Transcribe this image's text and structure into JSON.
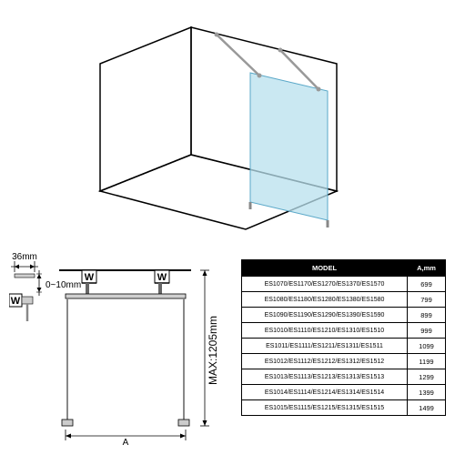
{
  "top3d": {
    "glass_fill": "#b8e0ee",
    "wall_stroke": "#000000",
    "wall_stroke_width": 1.5,
    "bar_stroke": "#888888"
  },
  "schematic": {
    "dim_36": "36mm",
    "dim_010": "0~10mm",
    "dim_max": "MAX:1205mm",
    "dim_A": "A",
    "w_label": "W",
    "stroke": "#000000"
  },
  "table": {
    "headers": [
      "MODEL",
      "A,mm"
    ],
    "rows": [
      [
        "ES1070/ES1170/ES1270/ES1370/ES1570",
        "699"
      ],
      [
        "ES1080/ES1180/ES1280/ES1380/ES1580",
        "799"
      ],
      [
        "ES1090/ES1190/ES1290/ES1390/ES1590",
        "899"
      ],
      [
        "ES1010/ES1110/ES1210/ES1310/ES1510",
        "999"
      ],
      [
        "ES1011/ES1111/ES1211/ES1311/ES1511",
        "1099"
      ],
      [
        "ES1012/ES1112/ES1212/ES1312/ES1512",
        "1199"
      ],
      [
        "ES1013/ES1113/ES1213/ES1313/ES1513",
        "1299"
      ],
      [
        "ES1014/ES1114/ES1214/ES1314/ES1514",
        "1399"
      ],
      [
        "ES1015/ES1115/ES1215/ES1315/ES1515",
        "1499"
      ]
    ]
  }
}
